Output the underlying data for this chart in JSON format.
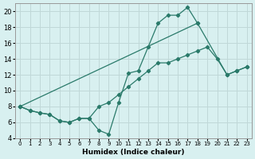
{
  "xlabel": "Humidex (Indice chaleur)",
  "background_color": "#d8f0f0",
  "grid_color": "#c0d8d8",
  "line_color": "#2a7a6a",
  "xlim": [
    -0.5,
    23.5
  ],
  "ylim": [
    4,
    21
  ],
  "xticks": [
    0,
    1,
    2,
    3,
    4,
    5,
    6,
    7,
    8,
    9,
    10,
    11,
    12,
    13,
    14,
    15,
    16,
    17,
    18,
    19,
    20,
    21,
    22,
    23
  ],
  "yticks": [
    4,
    6,
    8,
    10,
    12,
    14,
    16,
    18,
    20
  ],
  "line1_x": [
    0,
    1,
    2,
    3,
    4,
    5,
    6,
    7,
    8,
    9,
    10,
    11,
    12,
    13,
    14,
    15,
    16,
    17,
    18
  ],
  "line1_y": [
    8.0,
    7.5,
    7.2,
    7.0,
    6.2,
    6.0,
    6.5,
    6.5,
    5.0,
    4.5,
    8.5,
    12.2,
    12.5,
    15.5,
    18.5,
    19.5,
    19.5,
    20.5,
    18.5
  ],
  "line2_x": [
    0,
    1,
    2,
    3,
    4,
    5,
    6,
    7,
    8,
    9,
    10,
    11,
    12,
    13,
    14,
    15,
    16,
    17,
    18,
    19,
    20,
    21,
    22,
    23
  ],
  "line2_y": [
    8.0,
    7.5,
    7.2,
    7.0,
    6.2,
    6.0,
    6.5,
    6.5,
    8.0,
    8.5,
    9.5,
    10.5,
    11.5,
    12.5,
    13.5,
    13.5,
    14.0,
    14.5,
    15.0,
    15.5,
    14.0,
    12.0,
    12.5,
    13.0
  ],
  "line3_x": [
    0,
    18,
    21,
    22,
    23
  ],
  "line3_y": [
    8.0,
    18.5,
    12.0,
    12.5,
    13.0
  ]
}
